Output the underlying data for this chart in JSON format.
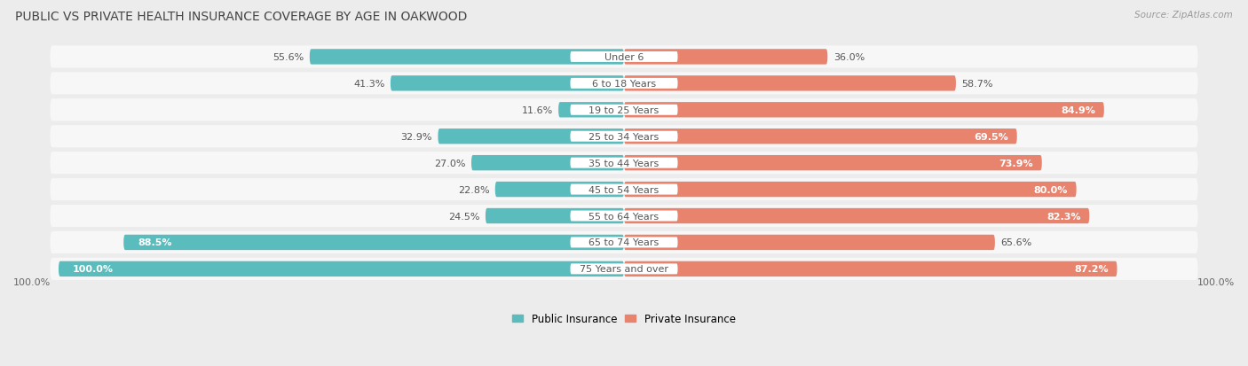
{
  "title": "PUBLIC VS PRIVATE HEALTH INSURANCE COVERAGE BY AGE IN OAKWOOD",
  "source": "Source: ZipAtlas.com",
  "categories": [
    "Under 6",
    "6 to 18 Years",
    "19 to 25 Years",
    "25 to 34 Years",
    "35 to 44 Years",
    "45 to 54 Years",
    "55 to 64 Years",
    "65 to 74 Years",
    "75 Years and over"
  ],
  "public_values": [
    55.6,
    41.3,
    11.6,
    32.9,
    27.0,
    22.8,
    24.5,
    88.5,
    100.0
  ],
  "private_values": [
    36.0,
    58.7,
    84.9,
    69.5,
    73.9,
    80.0,
    82.3,
    65.6,
    87.2
  ],
  "public_color": "#5bbcbd",
  "private_color": "#e8836e",
  "bg_color": "#ececec",
  "row_bg_color": "#f7f7f7",
  "title_fontsize": 10,
  "source_fontsize": 7.5,
  "label_fontsize": 8,
  "value_fontsize": 8,
  "legend_fontsize": 8.5,
  "max_value": 100.0,
  "x_axis_label_left": "100.0%",
  "x_axis_label_right": "100.0%"
}
